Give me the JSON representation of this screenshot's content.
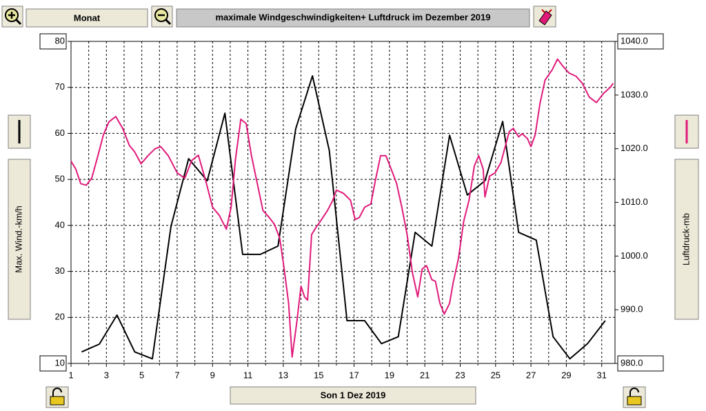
{
  "toolbar": {
    "period": "Monat"
  },
  "chart_data": {
    "type": "line",
    "title": "maximale Windgeschwindigkeiten+ Luftdruck im Dezember 2019",
    "y_label": "Max. Wind.-km/h",
    "y2_label": "Luftdruck-mb",
    "x_label": "Son 1 Dez 2019",
    "xlim": [
      1,
      31.75
    ],
    "xticks": [
      1,
      3,
      5,
      7,
      9,
      11,
      13,
      15,
      17,
      19,
      21,
      23,
      25,
      27,
      29,
      31
    ],
    "xminorticks": [
      2,
      4,
      6,
      8,
      10,
      12,
      14,
      16,
      18,
      20,
      22,
      24,
      26,
      28,
      30
    ],
    "ylim": [
      10,
      80
    ],
    "yticks": [
      10,
      20,
      30,
      40,
      50,
      60,
      70,
      80
    ],
    "y2lim": [
      980,
      1040
    ],
    "y2ticks": [
      {
        "value": 980,
        "label": "980.0"
      },
      {
        "value": 990,
        "label": "990.0"
      },
      {
        "value": 1000,
        "label": "1000.0"
      },
      {
        "value": 1010,
        "label": "1010.0"
      },
      {
        "value": 1020,
        "label": "1020.0"
      },
      {
        "value": 1030,
        "label": "1030.0"
      },
      {
        "value": 1040,
        "label": "1040.0"
      }
    ],
    "grid": true,
    "series": [
      {
        "color": "#000000",
        "axis": "y",
        "x": [
          1.6,
          2.6,
          3.6,
          4.6,
          5.6,
          6.65,
          7.65,
          8.7,
          9.7,
          10.7,
          11.7,
          12.7,
          13.7,
          14.65,
          15.6,
          16.6,
          17.6,
          18.55,
          19.5,
          20.45,
          21.4,
          22.4,
          23.4,
          24.4,
          25.4,
          26.3,
          27.3,
          28.25,
          29.2,
          30.2,
          31.2
        ],
        "values": [
          12.5,
          14.2,
          20.5,
          12.5,
          11,
          39.8,
          54.5,
          49.7,
          64.4,
          33.7,
          33.7,
          35.5,
          61,
          72.5,
          56.3,
          19.3,
          19.3,
          14.3,
          15.8,
          38.5,
          35.5,
          59.6,
          46.6,
          49.7,
          62.6,
          38.5,
          36.8,
          15.8,
          11,
          14.3,
          19.3
        ]
      },
      {
        "color": "#e0197a",
        "axis": "y2",
        "x": [
          1.0,
          1.27,
          1.55,
          1.86,
          2.17,
          2.52,
          2.83,
          3.14,
          3.53,
          3.92,
          4.3,
          4.6,
          4.96,
          5.35,
          5.75,
          6.07,
          6.5,
          7.0,
          7.43,
          7.82,
          8.2,
          8.6,
          9.0,
          9.38,
          9.78,
          10.05,
          10.3,
          10.6,
          10.9,
          11.2,
          11.5,
          11.85,
          12.2,
          12.5,
          12.8,
          13.05,
          13.3,
          13.5,
          13.75,
          14.0,
          14.2,
          14.37,
          14.6,
          14.84,
          15.1,
          15.5,
          15.8,
          16.0,
          16.4,
          16.8,
          17.06,
          17.3,
          17.6,
          17.95,
          18.2,
          18.5,
          18.8,
          19.1,
          19.4,
          19.7,
          20.0,
          20.3,
          20.6,
          20.85,
          21.1,
          21.4,
          21.6,
          21.85,
          22.1,
          22.4,
          22.6,
          22.9,
          23.2,
          23.5,
          23.8,
          24.05,
          24.3,
          24.4,
          24.66,
          24.97,
          25.3,
          25.56,
          25.77,
          26.0,
          26.3,
          26.5,
          26.8,
          27.0,
          27.24,
          27.5,
          27.8,
          28.2,
          28.5,
          28.8,
          29.15,
          29.55,
          29.9,
          30.3,
          30.7,
          31.1,
          31.5,
          31.65
        ],
        "values": [
          1017.7,
          1016.2,
          1013.5,
          1013.2,
          1014.5,
          1018.7,
          1022.6,
          1025.0,
          1026.0,
          1023.8,
          1020.6,
          1019.4,
          1017.2,
          1018.7,
          1020.0,
          1020.4,
          1018.7,
          1015.5,
          1014.5,
          1017.8,
          1018.8,
          1014.2,
          1009.1,
          1007.6,
          1005.0,
          1009.1,
          1018.1,
          1025.5,
          1024.7,
          1018.7,
          1014.0,
          1008.5,
          1007.2,
          1005.9,
          1003.3,
          997.6,
          991.2,
          981.2,
          987.3,
          994.4,
          992.4,
          991.8,
          1004.0,
          1005.3,
          1006.5,
          1008.5,
          1010.4,
          1012.3,
          1011.7,
          1010.4,
          1006.8,
          1007.2,
          1009.1,
          1009.7,
          1014.0,
          1018.7,
          1018.7,
          1016.2,
          1013.6,
          1009.1,
          1004.0,
          996.9,
          992.4,
          997.6,
          998.2,
          995.6,
          995.3,
          991.2,
          989.2,
          991.2,
          995.0,
          999.5,
          1006.5,
          1010.4,
          1016.8,
          1018.7,
          1016.2,
          1011.0,
          1014.9,
          1015.5,
          1017.4,
          1020.6,
          1023.2,
          1023.8,
          1022.2,
          1022.8,
          1021.9,
          1020.4,
          1022.6,
          1028.3,
          1032.8,
          1034.7,
          1036.7,
          1035.4,
          1034.1,
          1033.5,
          1032.2,
          1029.6,
          1028.6,
          1030.3,
          1031.5,
          1032.2
        ]
      }
    ]
  }
}
